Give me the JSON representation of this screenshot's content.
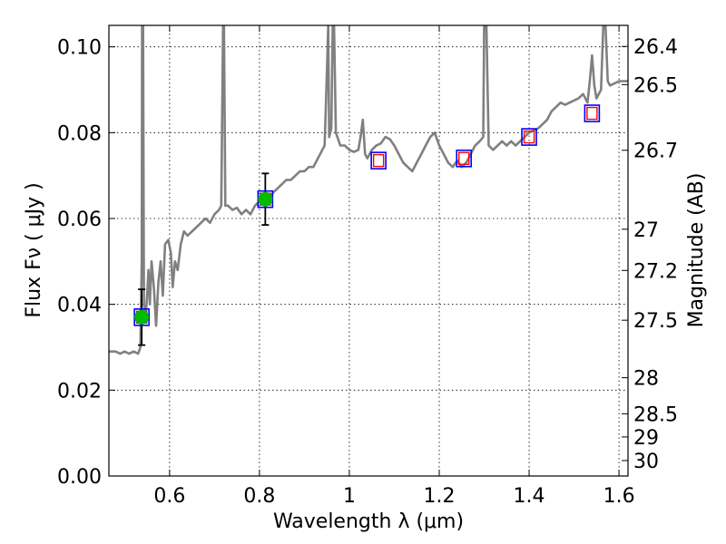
{
  "chart_data": {
    "type": "line",
    "xlabel": "Wavelength  λ (μm)",
    "ylabel": "Flux  Fν  ( μJy )",
    "y2label": "Magnitude (AB)",
    "xlim": [
      0.465,
      1.62
    ],
    "ylim": [
      0.0,
      0.105
    ],
    "grid": true,
    "x_ticks": [
      {
        "value": 0.6,
        "label": "0.6"
      },
      {
        "value": 0.8,
        "label": "0.8"
      },
      {
        "value": 1.0,
        "label": "1"
      },
      {
        "value": 1.2,
        "label": "1.2"
      },
      {
        "value": 1.4,
        "label": "1.4"
      },
      {
        "value": 1.6,
        "label": "1.6"
      }
    ],
    "y_ticks": [
      {
        "value": 0.0,
        "label": "0.00"
      },
      {
        "value": 0.02,
        "label": "0.02"
      },
      {
        "value": 0.04,
        "label": "0.04"
      },
      {
        "value": 0.06,
        "label": "0.06"
      },
      {
        "value": 0.08,
        "label": "0.08"
      },
      {
        "value": 0.1,
        "label": "0.10"
      }
    ],
    "y2_ticks": [
      {
        "label": "26.4",
        "flux": 0.1001
      },
      {
        "label": "26.5",
        "flux": 0.0912
      },
      {
        "label": "26.7",
        "flux": 0.0759
      },
      {
        "label": "27",
        "flux": 0.0575
      },
      {
        "label": "27.2",
        "flux": 0.0479
      },
      {
        "label": "27.5",
        "flux": 0.0363
      },
      {
        "label": "28",
        "flux": 0.0229
      },
      {
        "label": "28.5",
        "flux": 0.0145
      },
      {
        "label": "29",
        "flux": 0.0091
      },
      {
        "label": "30",
        "flux": 0.0036
      }
    ],
    "colors": {
      "spectrum": "#808080",
      "model_box": "#0000ff",
      "model_inner": "#ff0000",
      "detection": "#00bb00",
      "error_bar": "#000000",
      "grid": "#000000"
    },
    "series": [
      {
        "style": "spectrum-line",
        "points": [
          [
            0.465,
            0.029
          ],
          [
            0.48,
            0.029
          ],
          [
            0.49,
            0.0285
          ],
          [
            0.5,
            0.029
          ],
          [
            0.51,
            0.0285
          ],
          [
            0.52,
            0.029
          ],
          [
            0.53,
            0.0285
          ],
          [
            0.535,
            0.03
          ],
          [
            0.538,
            0.05
          ],
          [
            0.539,
            0.11
          ],
          [
            0.541,
            0.11
          ],
          [
            0.543,
            0.04
          ],
          [
            0.546,
            0.036
          ],
          [
            0.55,
            0.042
          ],
          [
            0.553,
            0.048
          ],
          [
            0.556,
            0.04
          ],
          [
            0.56,
            0.05
          ],
          [
            0.565,
            0.044
          ],
          [
            0.57,
            0.035
          ],
          [
            0.575,
            0.045
          ],
          [
            0.58,
            0.05
          ],
          [
            0.585,
            0.042
          ],
          [
            0.59,
            0.054
          ],
          [
            0.597,
            0.055
          ],
          [
            0.603,
            0.052
          ],
          [
            0.607,
            0.044
          ],
          [
            0.612,
            0.05
          ],
          [
            0.618,
            0.048
          ],
          [
            0.625,
            0.054
          ],
          [
            0.632,
            0.057
          ],
          [
            0.64,
            0.056
          ],
          [
            0.65,
            0.057
          ],
          [
            0.66,
            0.058
          ],
          [
            0.67,
            0.059
          ],
          [
            0.68,
            0.06
          ],
          [
            0.69,
            0.059
          ],
          [
            0.7,
            0.061
          ],
          [
            0.71,
            0.062
          ],
          [
            0.715,
            0.063
          ],
          [
            0.719,
            0.105
          ],
          [
            0.721,
            0.105
          ],
          [
            0.724,
            0.063
          ],
          [
            0.73,
            0.063
          ],
          [
            0.74,
            0.062
          ],
          [
            0.75,
            0.0625
          ],
          [
            0.76,
            0.061
          ],
          [
            0.77,
            0.062
          ],
          [
            0.78,
            0.061
          ],
          [
            0.79,
            0.063
          ],
          [
            0.8,
            0.064
          ],
          [
            0.81,
            0.065
          ],
          [
            0.82,
            0.064
          ],
          [
            0.83,
            0.066
          ],
          [
            0.84,
            0.067
          ],
          [
            0.85,
            0.068
          ],
          [
            0.86,
            0.069
          ],
          [
            0.87,
            0.069
          ],
          [
            0.88,
            0.07
          ],
          [
            0.89,
            0.071
          ],
          [
            0.9,
            0.071
          ],
          [
            0.91,
            0.072
          ],
          [
            0.92,
            0.072
          ],
          [
            0.93,
            0.074
          ],
          [
            0.94,
            0.076
          ],
          [
            0.945,
            0.077
          ],
          [
            0.95,
            0.094
          ],
          [
            0.953,
            0.105
          ],
          [
            0.955,
            0.079
          ],
          [
            0.96,
            0.081
          ],
          [
            0.963,
            0.105
          ],
          [
            0.966,
            0.105
          ],
          [
            0.97,
            0.08
          ],
          [
            0.98,
            0.077
          ],
          [
            0.99,
            0.077
          ],
          [
            1.0,
            0.076
          ],
          [
            1.01,
            0.0755
          ],
          [
            1.02,
            0.076
          ],
          [
            1.025,
            0.079
          ],
          [
            1.03,
            0.083
          ],
          [
            1.035,
            0.075
          ],
          [
            1.04,
            0.074
          ],
          [
            1.05,
            0.076
          ],
          [
            1.06,
            0.077
          ],
          [
            1.07,
            0.0775
          ],
          [
            1.08,
            0.079
          ],
          [
            1.09,
            0.0785
          ],
          [
            1.1,
            0.077
          ],
          [
            1.11,
            0.075
          ],
          [
            1.12,
            0.073
          ],
          [
            1.13,
            0.072
          ],
          [
            1.14,
            0.071
          ],
          [
            1.15,
            0.073
          ],
          [
            1.16,
            0.075
          ],
          [
            1.17,
            0.077
          ],
          [
            1.18,
            0.079
          ],
          [
            1.19,
            0.08
          ],
          [
            1.2,
            0.077
          ],
          [
            1.21,
            0.075
          ],
          [
            1.22,
            0.073
          ],
          [
            1.23,
            0.072
          ],
          [
            1.24,
            0.0735
          ],
          [
            1.25,
            0.072
          ],
          [
            1.26,
            0.073
          ],
          [
            1.27,
            0.075
          ],
          [
            1.28,
            0.077
          ],
          [
            1.29,
            0.078
          ],
          [
            1.298,
            0.079
          ],
          [
            1.3,
            0.105
          ],
          [
            1.305,
            0.105
          ],
          [
            1.31,
            0.077
          ],
          [
            1.32,
            0.076
          ],
          [
            1.33,
            0.077
          ],
          [
            1.34,
            0.078
          ],
          [
            1.35,
            0.077
          ],
          [
            1.36,
            0.078
          ],
          [
            1.37,
            0.077
          ],
          [
            1.38,
            0.078
          ],
          [
            1.39,
            0.079
          ],
          [
            1.4,
            0.08
          ],
          [
            1.41,
            0.0805
          ],
          [
            1.42,
            0.081
          ],
          [
            1.43,
            0.082
          ],
          [
            1.44,
            0.083
          ],
          [
            1.45,
            0.085
          ],
          [
            1.46,
            0.086
          ],
          [
            1.47,
            0.087
          ],
          [
            1.48,
            0.0865
          ],
          [
            1.49,
            0.087
          ],
          [
            1.5,
            0.0875
          ],
          [
            1.51,
            0.088
          ],
          [
            1.52,
            0.089
          ],
          [
            1.53,
            0.087
          ],
          [
            1.535,
            0.092
          ],
          [
            1.54,
            0.098
          ],
          [
            1.545,
            0.091
          ],
          [
            1.55,
            0.088
          ],
          [
            1.56,
            0.09
          ],
          [
            1.565,
            0.105
          ],
          [
            1.57,
            0.105
          ],
          [
            1.575,
            0.092
          ],
          [
            1.58,
            0.091
          ],
          [
            1.59,
            0.0915
          ],
          [
            1.6,
            0.092
          ],
          [
            1.62,
            0.092
          ]
        ]
      },
      {
        "style": "model-boxes",
        "points": [
          [
            0.538,
            0.037
          ],
          [
            0.813,
            0.0645
          ],
          [
            1.065,
            0.0735
          ],
          [
            1.255,
            0.074
          ],
          [
            1.4,
            0.079
          ],
          [
            1.54,
            0.0845
          ]
        ]
      },
      {
        "style": "detections-with-errors",
        "points": [
          {
            "x": 0.538,
            "y": 0.037,
            "ylo": 0.0305,
            "yhi": 0.0435
          },
          {
            "x": 0.813,
            "y": 0.0645,
            "ylo": 0.0585,
            "yhi": 0.0705
          }
        ]
      }
    ]
  }
}
